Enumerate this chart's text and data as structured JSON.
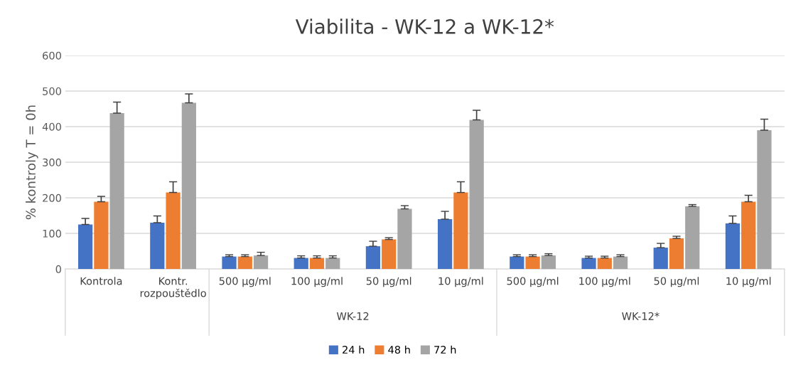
{
  "chart_data": {
    "type": "bar",
    "title": "Viabilita - WK-12 a WK-12*",
    "ylabel": "% kontroly T = 0h",
    "categories": [
      "Kontrola",
      "Kontr.\nrozpouštědlo",
      "500 µg/ml",
      "100 µg/ml",
      "50 µg/ml",
      "10 µg/ml",
      "500 µg/ml",
      "100 µg/ml",
      "50 µg/ml",
      "10 µg/ml"
    ],
    "series": [
      {
        "name": "24 h",
        "color": "#4472c4",
        "values": [
          125,
          130,
          35,
          31,
          64,
          140,
          35,
          31,
          60,
          128
        ],
        "errors": [
          17,
          19,
          5,
          6,
          14,
          22,
          5,
          5,
          12,
          21
        ]
      },
      {
        "name": "48 h",
        "color": "#ed7d31",
        "values": [
          189,
          215,
          35,
          31,
          83,
          215,
          35,
          31,
          86,
          189
        ],
        "errors": [
          15,
          30,
          5,
          6,
          5,
          30,
          5,
          5,
          6,
          18
        ]
      },
      {
        "name": "72 h",
        "color": "#a5a5a5",
        "values": [
          438,
          467,
          38,
          31,
          169,
          419,
          38,
          35,
          176,
          390
        ],
        "errors": [
          31,
          25,
          9,
          6,
          9,
          27,
          5,
          5,
          5,
          31
        ]
      }
    ],
    "annotations": [
      "WK-12",
      "WK-12*"
    ],
    "ylim": [
      0,
      600
    ],
    "yticks": [
      0,
      100,
      200,
      300,
      400,
      500,
      600
    ],
    "grid": "y",
    "legend": "bottom"
  }
}
